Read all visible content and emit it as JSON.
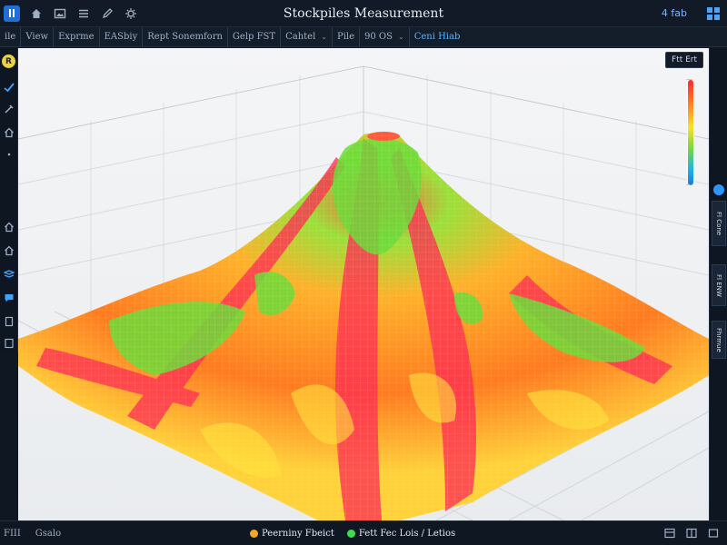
{
  "window": {
    "title": "Stockpiles Measurement",
    "language": "4 fab"
  },
  "menu": [
    {
      "label": "ile",
      "dropdown": false
    },
    {
      "label": "View",
      "dropdown": false
    },
    {
      "label": "Exprme",
      "dropdown": false
    },
    {
      "label": "EASbiy",
      "dropdown": false
    },
    {
      "label": "Rept Sonemforn",
      "dropdown": false
    },
    {
      "label": "Gelp FST",
      "dropdown": false
    },
    {
      "label": "Cahtel",
      "dropdown": true
    },
    {
      "label": "Pile",
      "dropdown": false
    },
    {
      "label": "90 OS",
      "dropdown": true
    },
    {
      "label": "Ceni Hiab",
      "dropdown": false
    }
  ],
  "scale": {
    "header": "Ftt Ert",
    "top_label": "—",
    "bottom_label": "—"
  },
  "status": {
    "left": [
      "FIII",
      "Gsalo"
    ],
    "legend": [
      {
        "label": "Peerniny Fbeict",
        "color": "#f5a623"
      },
      {
        "label": "Fett Fec Lois / Letios",
        "color": "#3ddc4a"
      }
    ]
  },
  "right_tabs": [
    "Fl Cone",
    "Fl ENW",
    "Fhrmue"
  ],
  "colors": {
    "accent": "#1f6fd6",
    "heat_high": "#ff2a55",
    "heat_mid": "#ffa51f",
    "heat_low": "#6cdc3a"
  }
}
